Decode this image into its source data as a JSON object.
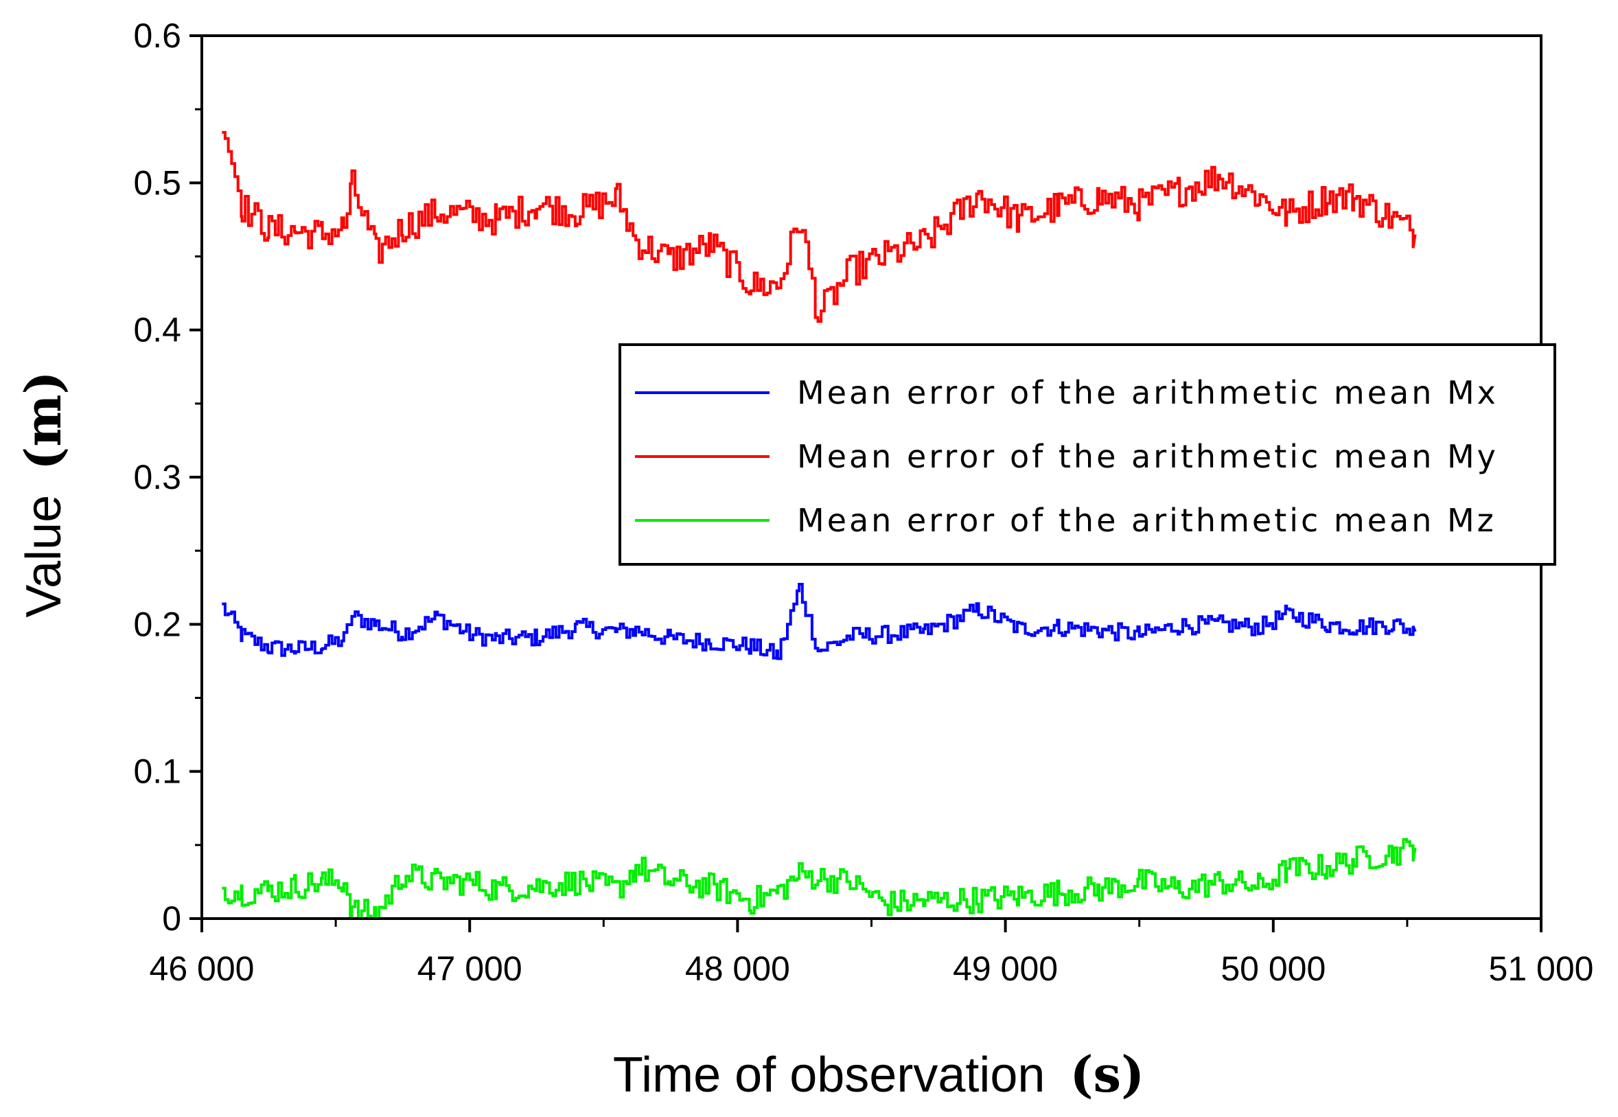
{
  "chart_data": {
    "type": "line",
    "title": "",
    "xlabel": "Time of observation",
    "xlabel_unit": "(s)",
    "ylabel": "Value",
    "ylabel_unit": "(m)",
    "xlim": [
      46000,
      51000
    ],
    "ylim": [
      0,
      0.6
    ],
    "x_ticks": [
      46000,
      47000,
      48000,
      49000,
      50000,
      51000
    ],
    "x_tick_labels": [
      "46 000",
      "47 000",
      "48 000",
      "49 000",
      "50 000",
      "51 000"
    ],
    "y_ticks": [
      0,
      0.1,
      0.2,
      0.3,
      0.4,
      0.5,
      0.6
    ],
    "y_tick_labels": [
      "0",
      "0.1",
      "0.2",
      "0.3",
      "0.4",
      "0.5",
      "0.6"
    ],
    "grid": false,
    "legend_position": "center-right",
    "x": [
      46075,
      46150,
      46250,
      46350,
      46450,
      46530,
      46560,
      46650,
      46750,
      46880,
      47000,
      47100,
      47250,
      47400,
      47550,
      47620,
      47750,
      47900,
      48050,
      48150,
      48230,
      48300,
      48420,
      48550,
      48700,
      48900,
      49050,
      49200,
      49350,
      49500,
      49650,
      49800,
      49950,
      50050,
      50200,
      50300,
      50450,
      50530
    ],
    "series": [
      {
        "name": "Mean error of the arithmetic mean Mx",
        "color": "#0000ff",
        "values": [
          0.212,
          0.192,
          0.184,
          0.183,
          0.185,
          0.19,
          0.205,
          0.2,
          0.194,
          0.205,
          0.193,
          0.19,
          0.191,
          0.198,
          0.195,
          0.196,
          0.19,
          0.188,
          0.185,
          0.179,
          0.225,
          0.182,
          0.192,
          0.193,
          0.195,
          0.21,
          0.197,
          0.198,
          0.196,
          0.193,
          0.199,
          0.2,
          0.198,
          0.207,
          0.2,
          0.198,
          0.2,
          0.195
        ]
      },
      {
        "name": "Mean error of the arithmetic mean My",
        "color": "#ff0000",
        "values": [
          0.545,
          0.484,
          0.468,
          0.467,
          0.465,
          0.47,
          0.498,
          0.452,
          0.47,
          0.48,
          0.478,
          0.475,
          0.485,
          0.48,
          0.49,
          0.46,
          0.448,
          0.458,
          0.43,
          0.43,
          0.475,
          0.41,
          0.44,
          0.45,
          0.46,
          0.492,
          0.475,
          0.484,
          0.49,
          0.485,
          0.495,
          0.505,
          0.49,
          0.478,
          0.49,
          0.49,
          0.475,
          0.465
        ]
      },
      {
        "name": "Mean error of the arithmetic mean Mz",
        "color": "#00ee00",
        "values": [
          0.02,
          0.018,
          0.019,
          0.022,
          0.025,
          0.025,
          0.005,
          0.003,
          0.03,
          0.025,
          0.025,
          0.02,
          0.022,
          0.025,
          0.02,
          0.035,
          0.025,
          0.022,
          0.012,
          0.018,
          0.03,
          0.028,
          0.025,
          0.01,
          0.012,
          0.013,
          0.015,
          0.018,
          0.02,
          0.025,
          0.02,
          0.025,
          0.022,
          0.033,
          0.035,
          0.04,
          0.045,
          0.048
        ]
      }
    ]
  }
}
